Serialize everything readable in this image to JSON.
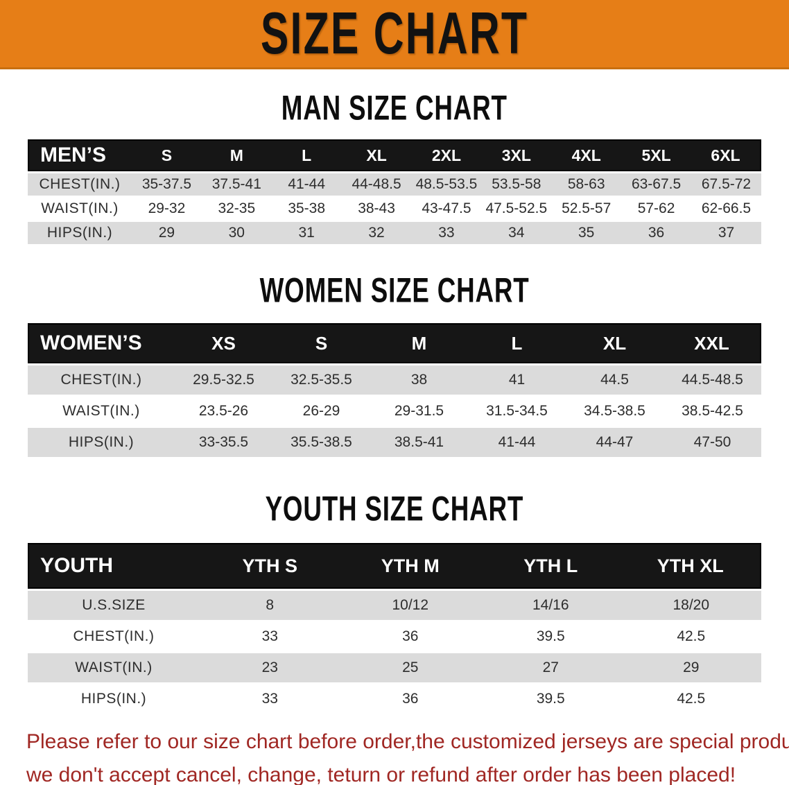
{
  "banner": {
    "title": "SIZE CHART"
  },
  "colors": {
    "banner_bg": "#E67E17",
    "header_band_bg": "#161616",
    "stripe_gray": "#DBDBDB",
    "disclaimer_red": "#A02723"
  },
  "sections": [
    {
      "heading": "MAN SIZE CHART",
      "table": {
        "header": [
          "MEN’S",
          "S",
          "M",
          "L",
          "XL",
          "2XL",
          "3XL",
          "4XL",
          "5XL",
          "6XL"
        ],
        "rows": [
          {
            "label": "CHEST(IN.)",
            "values": [
              "35-37.5",
              "37.5-41",
              "41-44",
              "44-48.5",
              "48.5-53.5",
              "53.5-58",
              "58-63",
              "63-67.5",
              "67.5-72"
            ]
          },
          {
            "label": "WAIST(IN.)",
            "values": [
              "29-32",
              "32-35",
              "35-38",
              "38-43",
              "43-47.5",
              "47.5-52.5",
              "52.5-57",
              "57-62",
              "62-66.5"
            ]
          },
          {
            "label": "HIPS(IN.)",
            "values": [
              "29",
              "30",
              "31",
              "32",
              "33",
              "34",
              "35",
              "36",
              "37"
            ]
          }
        ]
      }
    },
    {
      "heading": "WOMEN SIZE CHART",
      "table": {
        "header": [
          "WOMEN’S",
          "XS",
          "S",
          "M",
          "L",
          "XL",
          "XXL"
        ],
        "rows": [
          {
            "label": "CHEST(IN.)",
            "values": [
              "29.5-32.5",
              "32.5-35.5",
              "38",
              "41",
              "44.5",
              "44.5-48.5"
            ]
          },
          {
            "label": "WAIST(IN.)",
            "values": [
              "23.5-26",
              "26-29",
              "29-31.5",
              "31.5-34.5",
              "34.5-38.5",
              "38.5-42.5"
            ]
          },
          {
            "label": "HIPS(IN.)",
            "values": [
              "33-35.5",
              "35.5-38.5",
              "38.5-41",
              "41-44",
              "44-47",
              "47-50"
            ]
          }
        ]
      }
    },
    {
      "heading": "YOUTH SIZE CHART",
      "table": {
        "header": [
          "YOUTH",
          "YTH S",
          "YTH M",
          "YTH L",
          "YTH XL"
        ],
        "rows": [
          {
            "label": "U.S.SIZE",
            "values": [
              "8",
              "10/12",
              "14/16",
              "18/20"
            ]
          },
          {
            "label": "CHEST(IN.)",
            "values": [
              "33",
              "36",
              "39.5",
              "42.5"
            ]
          },
          {
            "label": "WAIST(IN.)",
            "values": [
              "23",
              "25",
              "27",
              "29"
            ]
          },
          {
            "label": "HIPS(IN.)",
            "values": [
              "33",
              "36",
              "39.5",
              "42.5"
            ]
          }
        ]
      }
    }
  ],
  "disclaimer": {
    "line1": "Please refer to our size chart before order,the customized jerseys are special products,",
    "line2": "we don't accept cancel, change, teturn or refund after order has been placed!"
  }
}
